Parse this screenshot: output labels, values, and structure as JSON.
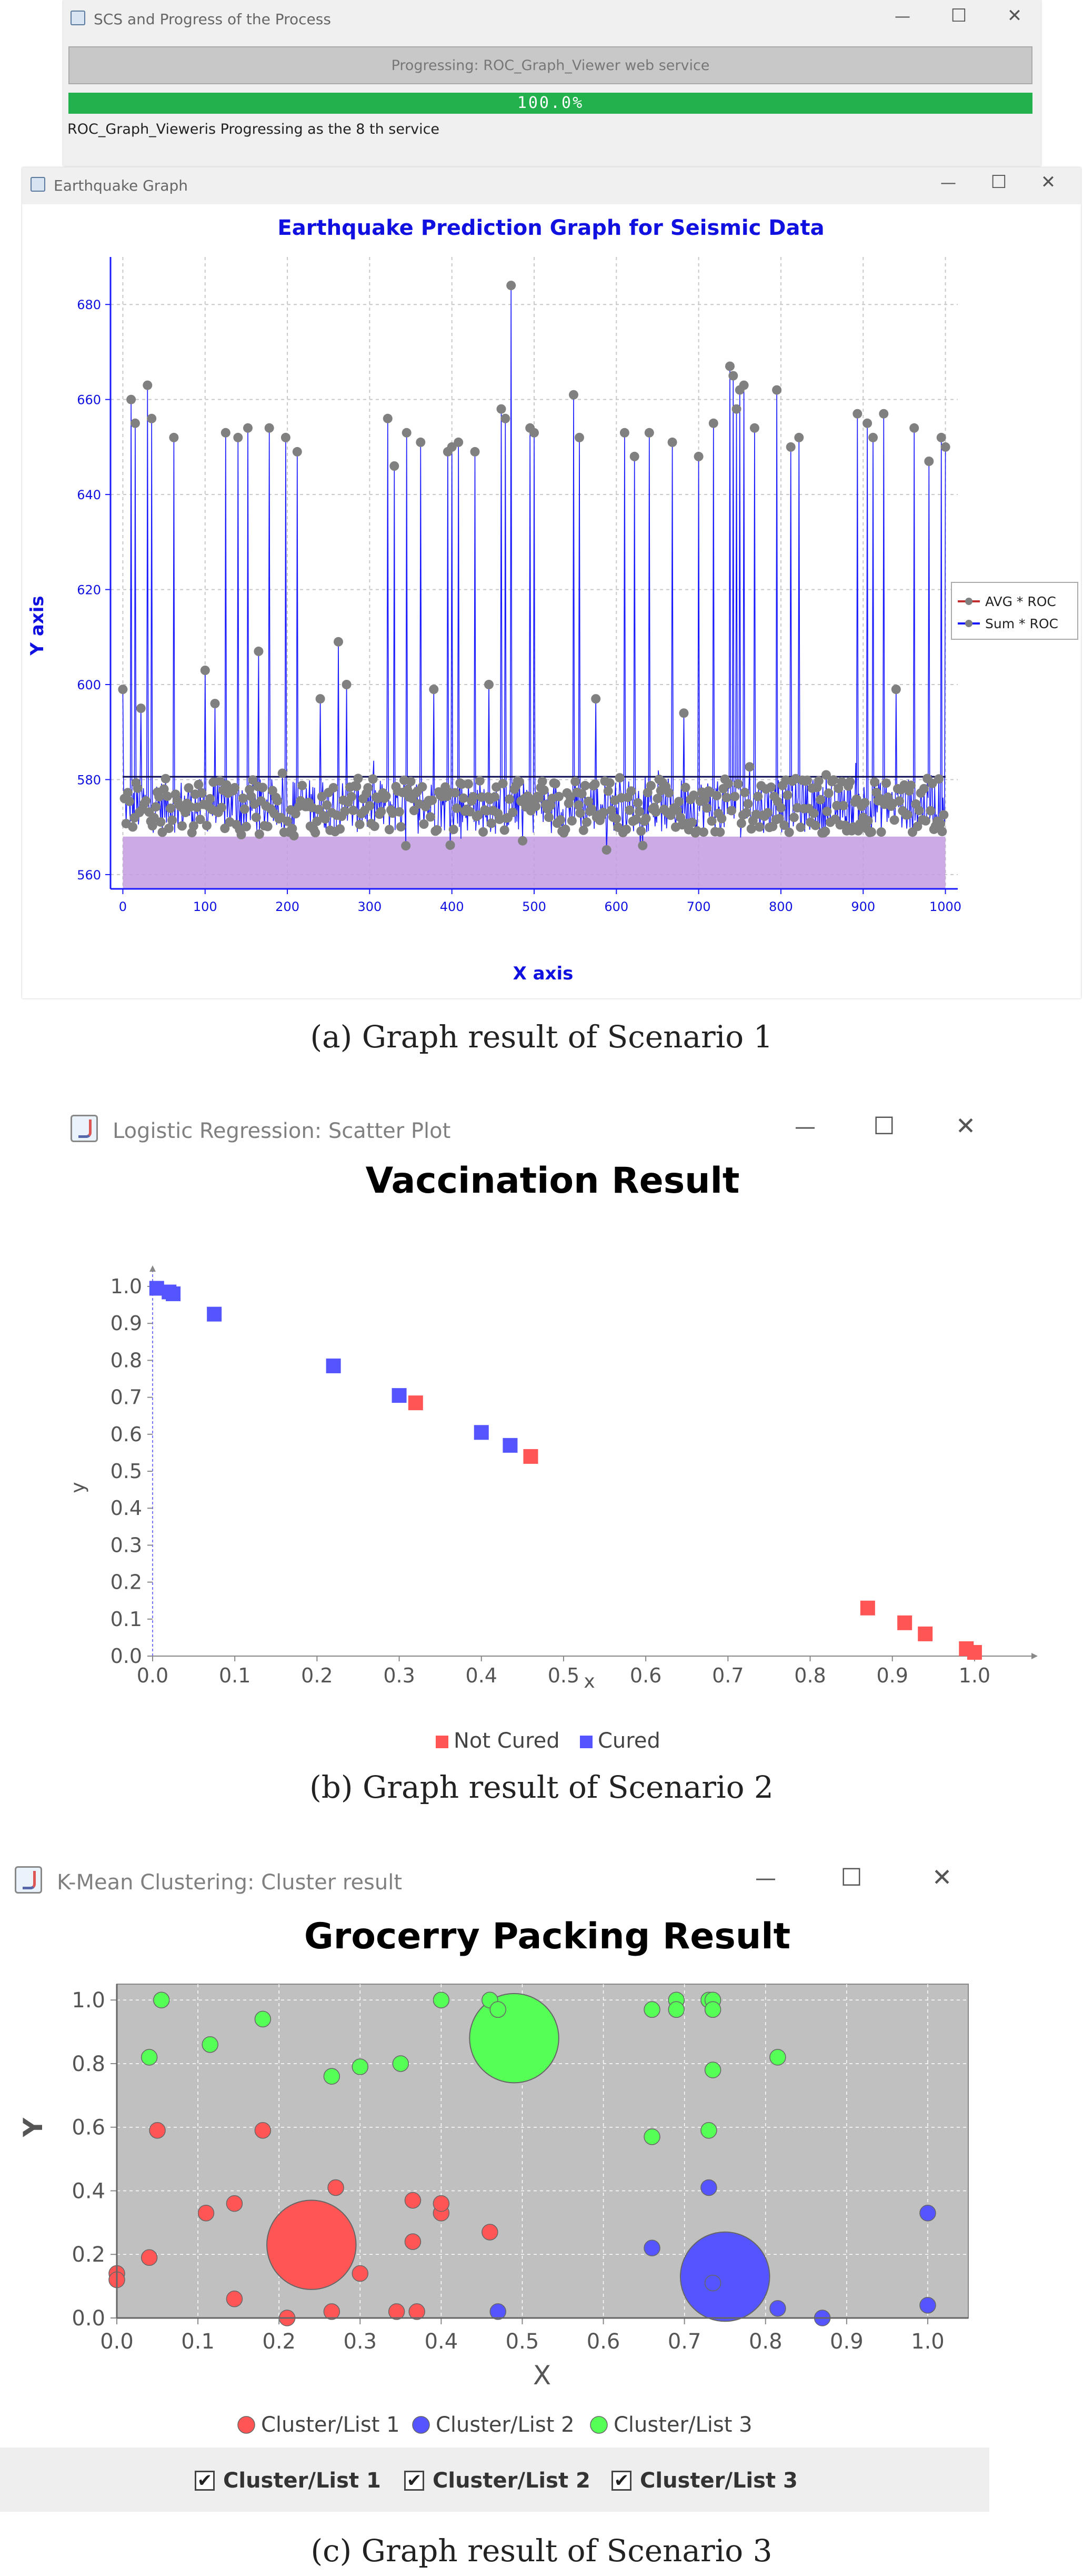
{
  "scenario1": {
    "progress_window": {
      "title": "SCS and Progress of the Process",
      "status_bar_text": "Progressing: ROC_Graph_Viewer web service",
      "progress_text": "100.0%",
      "progress_fraction": 1.0,
      "message": "ROC_Graph_Vieweris Progressing as the 8 th service",
      "controls": {
        "minimize": "—",
        "maximize": "☐",
        "close": "✕"
      }
    },
    "graph_window": {
      "title": "Earthquake Graph",
      "controls": {
        "minimize": "—",
        "maximize": "☐",
        "close": "✕"
      }
    },
    "caption": "(a)  Graph result of Scenario 1"
  },
  "scenario2": {
    "window": {
      "title": "Logistic Regression: Scatter Plot",
      "controls": {
        "minimize": "—",
        "maximize": "☐",
        "close": "✕"
      }
    },
    "caption": "(b)  Graph result of Scenario 2"
  },
  "scenario3": {
    "window": {
      "title": "K-Mean Clustering: Cluster result",
      "controls": {
        "minimize": "—",
        "maximize": "☐",
        "close": "✕"
      }
    },
    "checkboxes": [
      {
        "label": "Cluster/List 1",
        "checked": true,
        "mark": "✔"
      },
      {
        "label": "Cluster/List 2",
        "checked": true,
        "mark": "✔"
      },
      {
        "label": "Cluster/List 3",
        "checked": true,
        "mark": "✔"
      }
    ],
    "caption": "(c)  Graph result of Scenario 3"
  },
  "colors": {
    "progress_green": "#22b14c",
    "earthquake_title": "#1010e0",
    "sum_line": "#1a1aff",
    "avg_fill": "#c39be0",
    "marker_gray": "#808080",
    "not_cured": "#ff5555",
    "cured": "#5555ff",
    "cluster1": "#ff5555",
    "cluster2": "#5555ff",
    "cluster3": "#55ff55",
    "plot_bg_gray": "#c0c0c0"
  },
  "chart_data": [
    {
      "id": "earthquake",
      "type": "line",
      "title": "Earthquake Prediction Graph for Seismic Data",
      "xlabel": "X axis",
      "ylabel": "Y axis",
      "xlim": [
        -15,
        1015
      ],
      "ylim": [
        557,
        690
      ],
      "xticks": [
        0,
        100,
        200,
        300,
        400,
        500,
        600,
        700,
        800,
        900,
        1000
      ],
      "yticks": [
        560,
        580,
        600,
        620,
        640,
        660,
        680
      ],
      "grid": true,
      "legend_position": "right",
      "series": [
        {
          "name": "AVG * ROC",
          "kind": "area",
          "level": 568
        },
        {
          "name": "Sum * ROC",
          "kind": "line",
          "baseline_range": [
            563,
            586
          ],
          "peaks": [
            {
              "x": 0,
              "y": 599
            },
            {
              "x": 10,
              "y": 660
            },
            {
              "x": 15,
              "y": 655
            },
            {
              "x": 22,
              "y": 595
            },
            {
              "x": 30,
              "y": 663
            },
            {
              "x": 35,
              "y": 656
            },
            {
              "x": 62,
              "y": 652
            },
            {
              "x": 100,
              "y": 603
            },
            {
              "x": 112,
              "y": 596
            },
            {
              "x": 125,
              "y": 653
            },
            {
              "x": 140,
              "y": 652
            },
            {
              "x": 152,
              "y": 654
            },
            {
              "x": 165,
              "y": 607
            },
            {
              "x": 178,
              "y": 654
            },
            {
              "x": 198,
              "y": 652
            },
            {
              "x": 212,
              "y": 649
            },
            {
              "x": 240,
              "y": 597
            },
            {
              "x": 262,
              "y": 609
            },
            {
              "x": 272,
              "y": 600
            },
            {
              "x": 322,
              "y": 656
            },
            {
              "x": 330,
              "y": 646
            },
            {
              "x": 345,
              "y": 653
            },
            {
              "x": 362,
              "y": 651
            },
            {
              "x": 378,
              "y": 599
            },
            {
              "x": 395,
              "y": 649
            },
            {
              "x": 400,
              "y": 650
            },
            {
              "x": 408,
              "y": 651
            },
            {
              "x": 428,
              "y": 649
            },
            {
              "x": 445,
              "y": 600
            },
            {
              "x": 460,
              "y": 658
            },
            {
              "x": 465,
              "y": 656
            },
            {
              "x": 472,
              "y": 684
            },
            {
              "x": 495,
              "y": 654
            },
            {
              "x": 500,
              "y": 653
            },
            {
              "x": 548,
              "y": 661
            },
            {
              "x": 555,
              "y": 652
            },
            {
              "x": 575,
              "y": 597
            },
            {
              "x": 610,
              "y": 653
            },
            {
              "x": 622,
              "y": 648
            },
            {
              "x": 640,
              "y": 653
            },
            {
              "x": 668,
              "y": 651
            },
            {
              "x": 682,
              "y": 594
            },
            {
              "x": 700,
              "y": 648
            },
            {
              "x": 718,
              "y": 655
            },
            {
              "x": 738,
              "y": 667
            },
            {
              "x": 742,
              "y": 665
            },
            {
              "x": 746,
              "y": 658
            },
            {
              "x": 750,
              "y": 662
            },
            {
              "x": 755,
              "y": 663
            },
            {
              "x": 768,
              "y": 654
            },
            {
              "x": 795,
              "y": 662
            },
            {
              "x": 812,
              "y": 650
            },
            {
              "x": 822,
              "y": 652
            },
            {
              "x": 855,
              "y": 581
            },
            {
              "x": 893,
              "y": 657
            },
            {
              "x": 905,
              "y": 655
            },
            {
              "x": 912,
              "y": 652
            },
            {
              "x": 925,
              "y": 657
            },
            {
              "x": 940,
              "y": 599
            },
            {
              "x": 962,
              "y": 654
            },
            {
              "x": 980,
              "y": 647
            },
            {
              "x": 995,
              "y": 652
            },
            {
              "x": 1000,
              "y": 650
            }
          ]
        }
      ]
    },
    {
      "id": "vaccination",
      "type": "scatter",
      "title": "Vaccination Result",
      "xlabel": "x",
      "ylabel": "y",
      "xlim": [
        0.0,
        1.05
      ],
      "ylim": [
        0.0,
        1.0
      ],
      "xticks": [
        "0.0",
        "0.1",
        "0.2",
        "0.3",
        "0.4",
        "0.5",
        "0.6",
        "0.7",
        "0.8",
        "0.9",
        "1.0"
      ],
      "yticks": [
        "0.0",
        "0.1",
        "0.2",
        "0.3",
        "0.4",
        "0.5",
        "0.6",
        "0.7",
        "0.8",
        "0.9",
        "1.0"
      ],
      "grid": false,
      "legend_position": "bottom",
      "series": [
        {
          "name": "Not Cured",
          "marker": "square",
          "points": [
            [
              0.32,
              0.685
            ],
            [
              0.46,
              0.54
            ],
            [
              0.87,
              0.13
            ],
            [
              0.915,
              0.09
            ],
            [
              0.94,
              0.06
            ],
            [
              0.99,
              0.02
            ],
            [
              1.0,
              0.01
            ]
          ]
        },
        {
          "name": "Cured",
          "marker": "square",
          "points": [
            [
              0.005,
              0.995
            ],
            [
              0.02,
              0.985
            ],
            [
              0.025,
              0.98
            ],
            [
              0.075,
              0.925
            ],
            [
              0.22,
              0.785
            ],
            [
              0.3,
              0.705
            ],
            [
              0.4,
              0.605
            ],
            [
              0.435,
              0.57
            ]
          ]
        }
      ]
    },
    {
      "id": "grocery",
      "type": "scatter",
      "title": "Grocerry Packing Result",
      "xlabel": "X",
      "ylabel": "Y",
      "xlim": [
        0.0,
        1.05
      ],
      "ylim": [
        0.0,
        1.05
      ],
      "xticks": [
        "0.0",
        "0.1",
        "0.2",
        "0.3",
        "0.4",
        "0.5",
        "0.6",
        "0.7",
        "0.8",
        "0.9",
        "1.0"
      ],
      "yticks": [
        "0.0",
        "0.2",
        "0.4",
        "0.6",
        "0.8",
        "1.0"
      ],
      "grid": true,
      "legend_position": "bottom",
      "centroid_radius_data": 0.055,
      "series": [
        {
          "name": "Cluster/List 1",
          "centroid": [
            0.24,
            0.23
          ],
          "points": [
            [
              0.0,
              0.14
            ],
            [
              0.0,
              0.12
            ],
            [
              0.04,
              0.19
            ],
            [
              0.05,
              0.59
            ],
            [
              0.11,
              0.33
            ],
            [
              0.145,
              0.06
            ],
            [
              0.145,
              0.36
            ],
            [
              0.18,
              0.59
            ],
            [
              0.21,
              0.0
            ],
            [
              0.265,
              0.02
            ],
            [
              0.27,
              0.41
            ],
            [
              0.3,
              0.14
            ],
            [
              0.345,
              0.02
            ],
            [
              0.365,
              0.24
            ],
            [
              0.365,
              0.37
            ],
            [
              0.37,
              0.02
            ],
            [
              0.4,
              0.33
            ],
            [
              0.4,
              0.36
            ],
            [
              0.46,
              0.27
            ]
          ]
        },
        {
          "name": "Cluster/List 2",
          "centroid": [
            0.75,
            0.13
          ],
          "points": [
            [
              0.47,
              0.02
            ],
            [
              0.66,
              0.22
            ],
            [
              0.73,
              0.41
            ],
            [
              0.735,
              0.11
            ],
            [
              0.815,
              0.03
            ],
            [
              0.87,
              0.0
            ],
            [
              1.0,
              0.33
            ],
            [
              1.0,
              0.04
            ]
          ]
        },
        {
          "name": "Cluster/List 3",
          "centroid": [
            0.49,
            0.88
          ],
          "points": [
            [
              0.04,
              0.82
            ],
            [
              0.055,
              1.0
            ],
            [
              0.115,
              0.86
            ],
            [
              0.18,
              0.94
            ],
            [
              0.265,
              0.76
            ],
            [
              0.3,
              0.79
            ],
            [
              0.35,
              0.8
            ],
            [
              0.4,
              1.0
            ],
            [
              0.46,
              1.0
            ],
            [
              0.47,
              0.97
            ],
            [
              0.66,
              0.97
            ],
            [
              0.66,
              0.57
            ],
            [
              0.69,
              1.0
            ],
            [
              0.69,
              0.97
            ],
            [
              0.73,
              1.0
            ],
            [
              0.735,
              1.0
            ],
            [
              0.735,
              0.97
            ],
            [
              0.735,
              0.78
            ],
            [
              0.73,
              0.59
            ],
            [
              0.815,
              0.82
            ]
          ]
        }
      ]
    }
  ]
}
